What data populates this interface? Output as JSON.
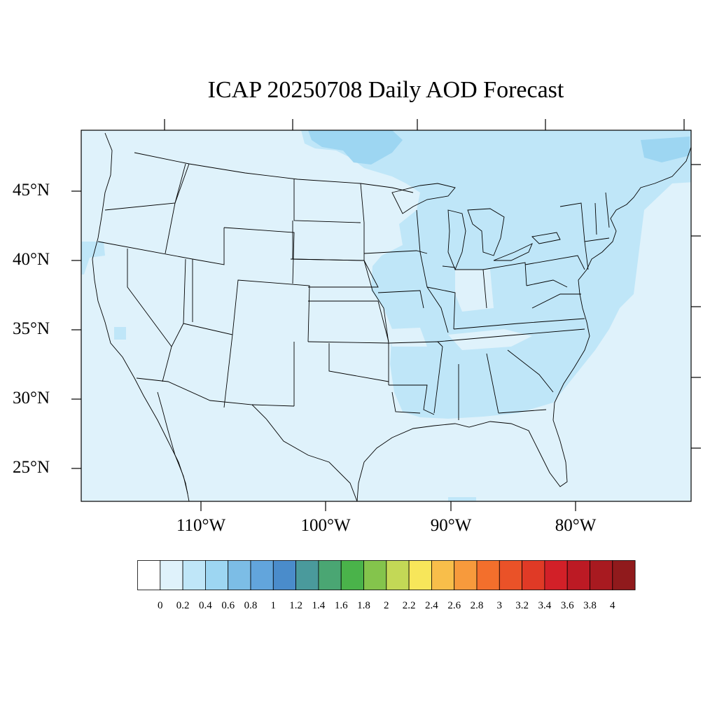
{
  "title": "ICAP 20250708 Daily AOD Forecast",
  "map": {
    "lat_labels": [
      "45°N",
      "40°N",
      "35°N",
      "30°N",
      "25°N"
    ],
    "lon_labels": [
      "110°W",
      "100°W",
      "90°W",
      "80°W"
    ],
    "background_color": "#dff2fb",
    "boundary_color": "#000000"
  },
  "colorbar": {
    "tick_labels": [
      "0",
      "0.2",
      "0.4",
      "0.6",
      "0.8",
      "1",
      "1.2",
      "1.4",
      "1.6",
      "1.8",
      "2",
      "2.2",
      "2.4",
      "2.6",
      "2.8",
      "3",
      "3.2",
      "3.4",
      "3.6",
      "3.8",
      "4"
    ],
    "colors": [
      "#ffffff",
      "#dff2fb",
      "#bfe6f8",
      "#9dd6f2",
      "#7cbde6",
      "#62a5dc",
      "#4a8ccb",
      "#4a9a9c",
      "#4aa673",
      "#4ab34a",
      "#84c44c",
      "#c3d856",
      "#f7e65a",
      "#f8be4a",
      "#f79a3c",
      "#f36f2c",
      "#ea5228",
      "#e03a26",
      "#d22028",
      "#bc1a24",
      "#a81a20",
      "#901a1c"
    ]
  }
}
